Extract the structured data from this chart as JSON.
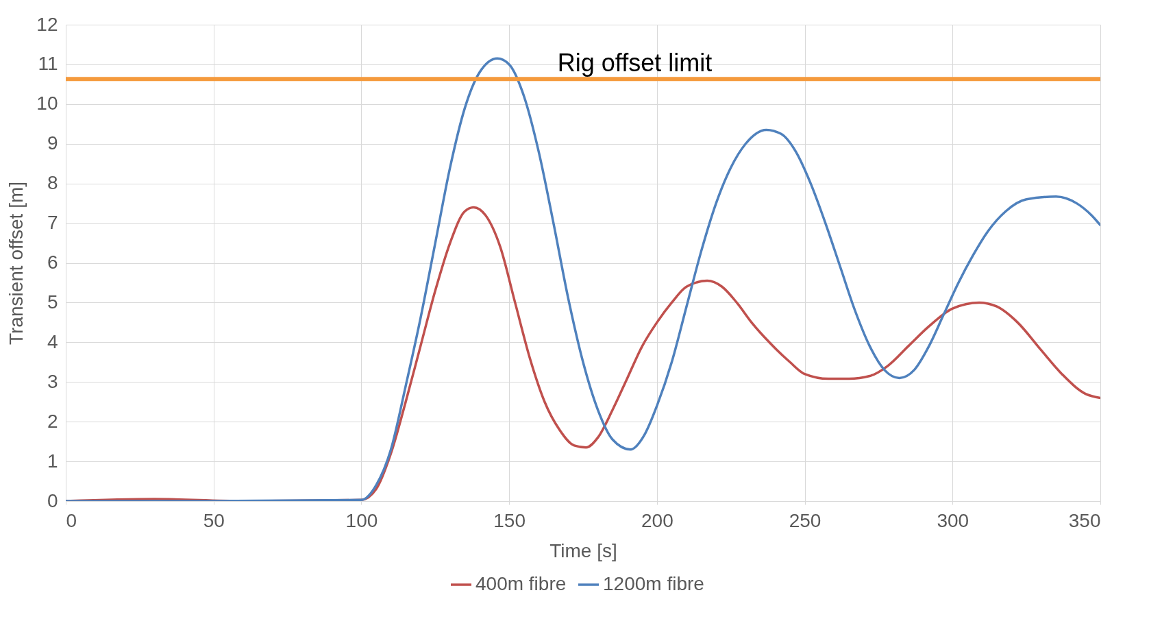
{
  "chart_data": {
    "type": "line",
    "xlabel": "Time [s]",
    "ylabel": "Transient offset [m]",
    "xlim": [
      0,
      350
    ],
    "xticks": [
      0,
      50,
      100,
      150,
      200,
      250,
      300,
      350
    ],
    "ylim": [
      0,
      12
    ],
    "yticks": [
      0,
      1,
      2,
      3,
      4,
      5,
      6,
      7,
      8,
      9,
      10,
      11,
      12
    ],
    "grid": true,
    "legend": "bottom",
    "ref_lines": [
      {
        "axis": "y",
        "value": 10.63,
        "label": "Rig offset limit",
        "color": "#f59a3c"
      }
    ],
    "series": [
      {
        "name": "400m fibre",
        "color": "#c0504d",
        "x": [
          0,
          30,
          60,
          100,
          105,
          110,
          115,
          120,
          125,
          130,
          135,
          138,
          142,
          147,
          152,
          157,
          162,
          167,
          172,
          176,
          180,
          185,
          190,
          195,
          200,
          205,
          210,
          217,
          222,
          227,
          232,
          238,
          245,
          250,
          258,
          265,
          272,
          278,
          285,
          292,
          300,
          309,
          315,
          322,
          330,
          337,
          345,
          350
        ],
        "values": [
          0,
          0.05,
          0,
          0.03,
          0.3,
          1.2,
          2.5,
          3.9,
          5.3,
          6.5,
          7.3,
          7.4,
          7.2,
          6.4,
          5.0,
          3.6,
          2.5,
          1.8,
          1.4,
          1.35,
          1.6,
          2.3,
          3.1,
          3.9,
          4.5,
          5.0,
          5.4,
          5.55,
          5.4,
          5.0,
          4.5,
          4.0,
          3.5,
          3.2,
          3.08,
          3.08,
          3.15,
          3.4,
          3.9,
          4.4,
          4.85,
          5.0,
          4.9,
          4.5,
          3.8,
          3.2,
          2.7,
          2.6
        ]
      },
      {
        "name": "1200m fibre",
        "color": "#4f81bd",
        "x": [
          0,
          50,
          100,
          105,
          110,
          115,
          120,
          125,
          130,
          135,
          140,
          146,
          150,
          155,
          160,
          165,
          170,
          175,
          180,
          185,
          191,
          196,
          200,
          205,
          210,
          215,
          220,
          225,
          230,
          237,
          242,
          247,
          252,
          257,
          262,
          267,
          272,
          277,
          282,
          287,
          292,
          297,
          302,
          307,
          312,
          318,
          325,
          335,
          342,
          347,
          350
        ],
        "values": [
          0,
          0,
          0.03,
          0.4,
          1.3,
          2.9,
          4.6,
          6.5,
          8.4,
          9.9,
          10.8,
          11.15,
          11.0,
          10.2,
          8.8,
          7.0,
          5.1,
          3.5,
          2.3,
          1.55,
          1.3,
          1.7,
          2.4,
          3.5,
          4.9,
          6.3,
          7.5,
          8.4,
          9.0,
          9.35,
          9.25,
          8.8,
          8.0,
          7.0,
          5.9,
          4.8,
          3.9,
          3.3,
          3.1,
          3.3,
          3.9,
          4.7,
          5.5,
          6.2,
          6.8,
          7.3,
          7.6,
          7.67,
          7.5,
          7.2,
          6.95
        ]
      }
    ]
  }
}
